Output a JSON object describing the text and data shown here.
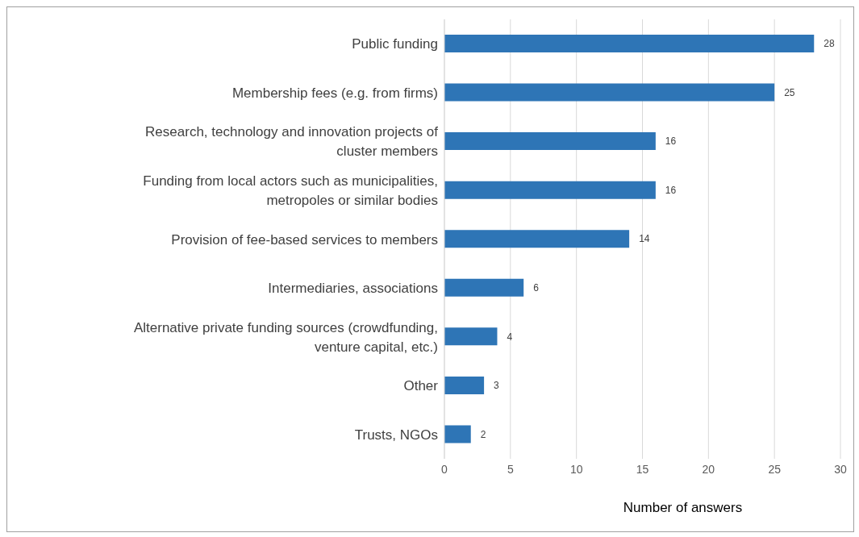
{
  "chart_data": {
    "type": "bar",
    "orientation": "horizontal",
    "xlabel": "Number of answers",
    "categories": [
      "Public funding",
      "Membership fees (e.g. from firms)",
      "Research, technology and innovation projects of cluster members",
      "Funding from local actors such as municipalities, metropoles or similar bodies",
      "Provision of fee-based services to members",
      "Intermediaries, associations",
      "Alternative private funding sources (crowdfunding, venture capital, etc.)",
      "Other",
      "Trusts, NGOs"
    ],
    "values": [
      28,
      25,
      16,
      16,
      14,
      6,
      4,
      3,
      2
    ],
    "color": "#2e75b6",
    "xlim": [
      0,
      30
    ],
    "xticks": [
      0,
      5,
      10,
      15,
      20,
      25,
      30
    ],
    "grid": "x",
    "data_labels": true
  }
}
